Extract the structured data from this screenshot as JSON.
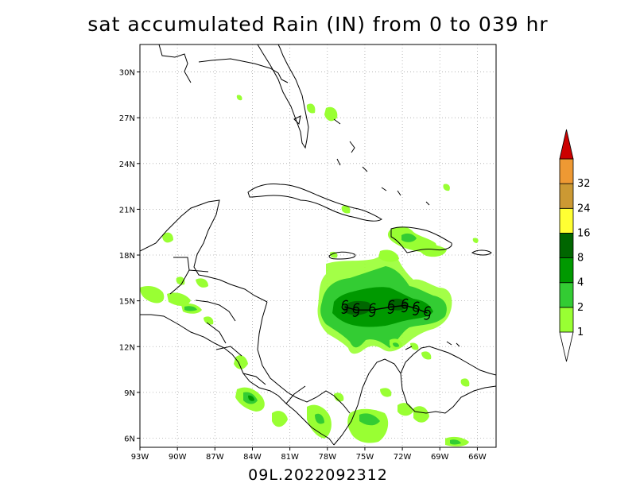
{
  "title": "sat accumulated Rain (IN) from 0 to 039 hr",
  "subtitle": "09L.2022092312",
  "map": {
    "lon_range": [
      -93,
      -64.5
    ],
    "lat_range": [
      5.4,
      31.8
    ],
    "lon_ticks": [
      {
        "value": -93,
        "label": "93W"
      },
      {
        "value": -90,
        "label": "90W"
      },
      {
        "value": -87,
        "label": "87W"
      },
      {
        "value": -84,
        "label": "84W"
      },
      {
        "value": -81,
        "label": "81W"
      },
      {
        "value": -78,
        "label": "78W"
      },
      {
        "value": -75,
        "label": "75W"
      },
      {
        "value": -72,
        "label": "72W"
      },
      {
        "value": -69,
        "label": "69W"
      },
      {
        "value": -66,
        "label": "66W"
      }
    ],
    "lat_ticks": [
      {
        "value": 6,
        "label": "6N"
      },
      {
        "value": 9,
        "label": "9N"
      },
      {
        "value": 12,
        "label": "12N"
      },
      {
        "value": 15,
        "label": "15N"
      },
      {
        "value": 18,
        "label": "18N"
      },
      {
        "value": 21,
        "label": "21N"
      },
      {
        "value": 24,
        "label": "24N"
      },
      {
        "value": 27,
        "label": "27N"
      },
      {
        "value": 30,
        "label": "30N"
      }
    ],
    "grid": "dotted",
    "storm_symbol": "tropical-cyclone-icon",
    "storm_track": [
      [
        -76.6,
        14.6
      ],
      [
        -75.7,
        14.4
      ],
      [
        -74.4,
        14.4
      ],
      [
        -72.9,
        14.6
      ],
      [
        -71.8,
        14.7
      ],
      [
        -70.9,
        14.5
      ],
      [
        -70.0,
        14.2
      ]
    ]
  },
  "colorbar": {
    "levels": [
      {
        "label": "1",
        "color": "#99ff33"
      },
      {
        "label": "2",
        "color": "#33cc33"
      },
      {
        "label": "4",
        "color": "#009900"
      },
      {
        "label": "8",
        "color": "#006600"
      },
      {
        "label": "16",
        "color": "#ffff33"
      },
      {
        "label": "24",
        "color": "#cc9933"
      },
      {
        "label": "32",
        "color": "#ee9933"
      }
    ],
    "overflow_color": "#cc0000",
    "tick_labels": [
      "1",
      "2",
      "4",
      "8",
      "16",
      "24",
      "32"
    ]
  }
}
